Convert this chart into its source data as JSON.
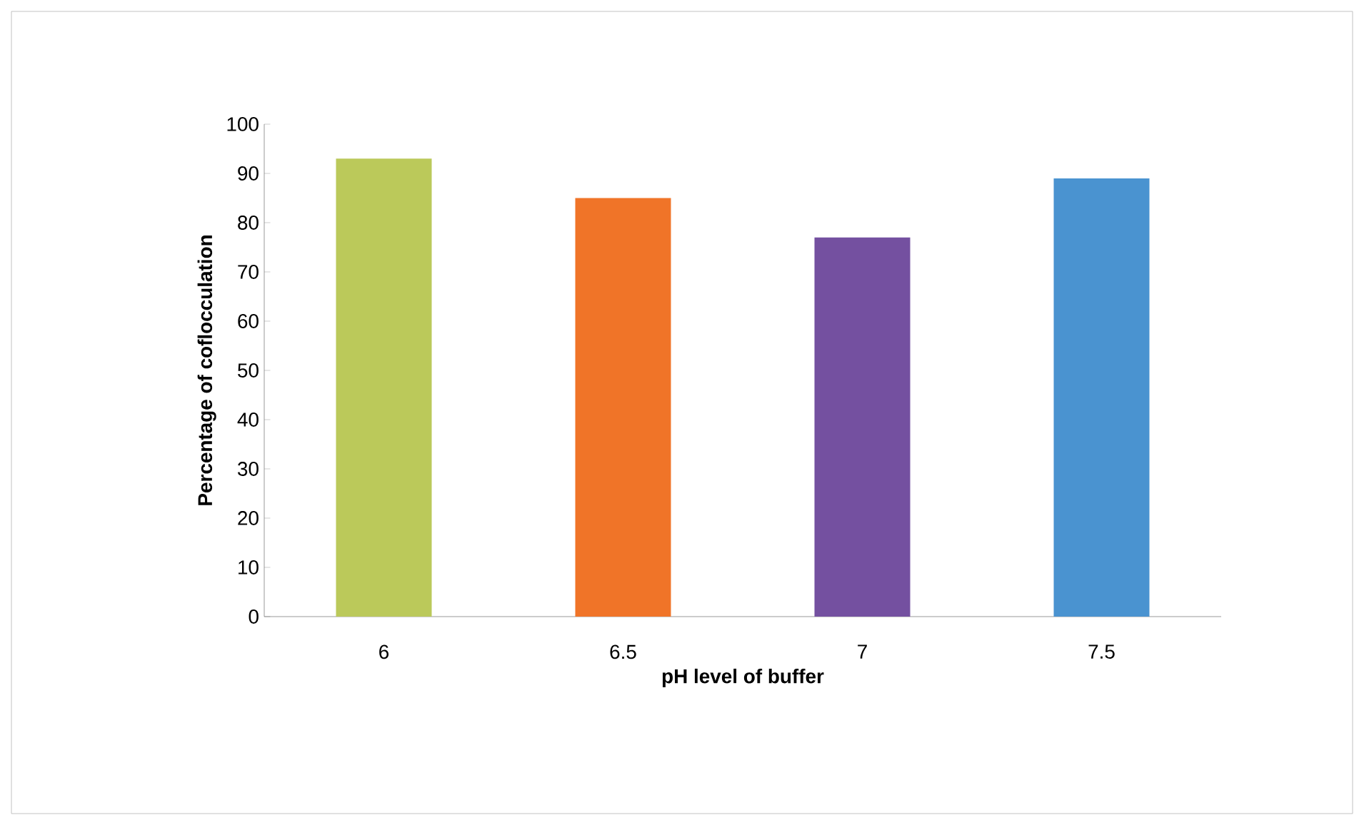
{
  "chart_data": {
    "type": "bar",
    "xlabel": "pH level of buffer",
    "ylabel": "Percentage of coflocculation",
    "categories": [
      "6",
      "6.5",
      "7",
      "7.5"
    ],
    "values": [
      93,
      85,
      77,
      89
    ],
    "colors": [
      "#bbc95a",
      "#f07428",
      "#7450a0",
      "#4a93d0"
    ],
    "ylim": [
      0,
      100
    ],
    "yticks": [
      0,
      10,
      20,
      30,
      40,
      50,
      60,
      70,
      80,
      90,
      100
    ],
    "grid": false
  }
}
